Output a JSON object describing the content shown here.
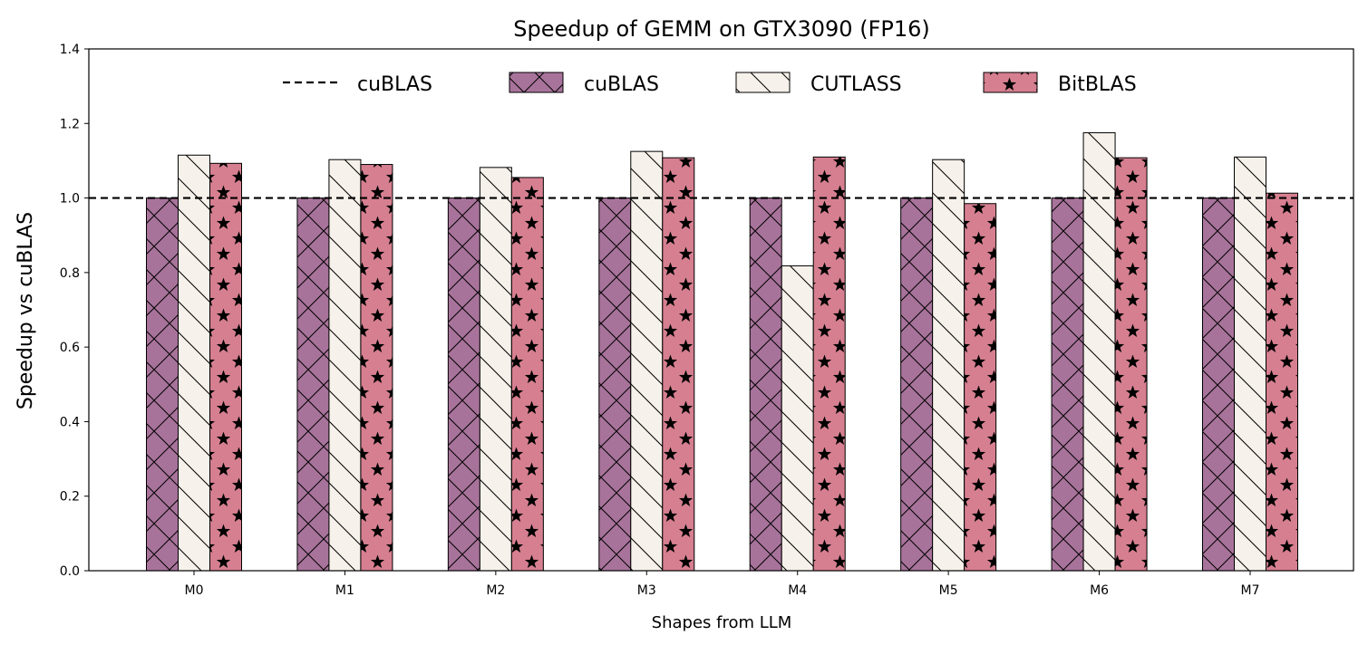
{
  "chart_data": {
    "type": "bar",
    "title": "Speedup of GEMM on GTX3090 (FP16)",
    "xlabel": "Shapes from LLM",
    "ylabel": "Speedup vs cuBLAS",
    "categories": [
      "M0",
      "M1",
      "M2",
      "M3",
      "M4",
      "M5",
      "M6",
      "M7"
    ],
    "ylim": [
      0,
      1.4
    ],
    "yticks": [
      0.0,
      0.2,
      0.4,
      0.6,
      0.8,
      1.0,
      1.2,
      1.4
    ],
    "ytick_labels": [
      "0.0",
      "0.2",
      "0.4",
      "0.6",
      "0.8",
      "1.0",
      "1.2",
      "1.4"
    ],
    "reference_line": {
      "label": "cuBLAS",
      "value": 1.0,
      "style": "dashed",
      "color": "#000000"
    },
    "series": [
      {
        "name": "cuBLAS",
        "color": "#a8739b",
        "hatch": "cross",
        "values": [
          1.0,
          1.0,
          1.0,
          1.0,
          1.0,
          1.0,
          1.0,
          1.0
        ]
      },
      {
        "name": "CUTLASS",
        "color": "#f6f1ea",
        "hatch": "backslash",
        "values": [
          1.115,
          1.103,
          1.082,
          1.125,
          0.818,
          1.103,
          1.175,
          1.11
        ]
      },
      {
        "name": "BitBLAS",
        "color": "#d67f90",
        "hatch": "star",
        "values": [
          1.093,
          1.09,
          1.055,
          1.108,
          1.11,
          0.985,
          1.108,
          1.013
        ]
      }
    ],
    "legend": {
      "location": "top-center",
      "columns": 4
    },
    "grid": false
  }
}
